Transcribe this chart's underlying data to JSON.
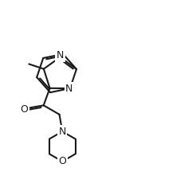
{
  "bg_color": "#ffffff",
  "line_color": "#1a1a1a",
  "line_width": 1.5,
  "font_size": 9,
  "figsize": [
    2.31,
    2.45
  ],
  "dpi": 100,
  "xlim": [
    0,
    10
  ],
  "ylim": [
    0,
    10.6
  ]
}
